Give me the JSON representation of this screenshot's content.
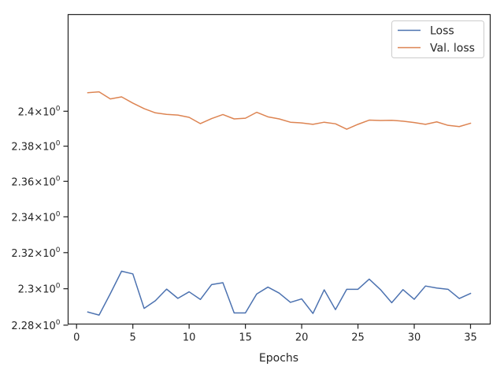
{
  "chart_data": {
    "type": "line",
    "xlabel": "Epochs",
    "ylabel": "",
    "xlim": [
      -0.75,
      36.75
    ],
    "ylim": [
      2.2806,
      2.4563
    ],
    "yscale": "log",
    "grid": false,
    "legend_position": "top-right",
    "x": [
      1,
      2,
      3,
      4,
      5,
      6,
      7,
      8,
      9,
      10,
      11,
      12,
      13,
      14,
      15,
      16,
      17,
      18,
      19,
      20,
      21,
      22,
      23,
      24,
      25,
      26,
      27,
      28,
      29,
      30,
      31,
      32,
      33,
      34,
      35
    ],
    "xticks": [
      0,
      5,
      10,
      15,
      20,
      25,
      30,
      35
    ],
    "xtick_labels": [
      "0",
      "5",
      "10",
      "15",
      "20",
      "25",
      "30",
      "35"
    ],
    "yticks": [
      2.28,
      2.3,
      2.32,
      2.34,
      2.36,
      2.38,
      2.4
    ],
    "ytick_mantissas": [
      "2.28",
      "2.3",
      "2.32",
      "2.34",
      "2.36",
      "2.38",
      "2.4"
    ],
    "ytick_exponent": "0",
    "ytick_times": "×",
    "ytick_base": "10",
    "series": [
      {
        "name": "Loss",
        "color": "#4c72b0",
        "values": [
          2.2872,
          2.2855,
          2.2973,
          2.3097,
          2.3082,
          2.2892,
          2.2934,
          2.2998,
          2.2947,
          2.2983,
          2.2941,
          2.3023,
          2.3033,
          2.2867,
          2.2867,
          2.2971,
          2.3009,
          2.2976,
          2.2925,
          2.2944,
          2.2864,
          2.2994,
          2.2885,
          2.2997,
          2.2997,
          2.3053,
          2.2995,
          2.2923,
          2.2995,
          2.2942,
          2.3015,
          2.3004,
          2.2997,
          2.2946,
          2.2974
        ]
      },
      {
        "name": "Val. loss",
        "color": "#dd8452",
        "values": [
          2.4107,
          2.4112,
          2.4071,
          2.4083,
          2.4047,
          2.4015,
          2.3991,
          2.3982,
          2.3978,
          2.3965,
          2.3929,
          2.3958,
          2.3981,
          2.3956,
          2.396,
          2.3994,
          2.3968,
          2.3956,
          2.3937,
          2.3933,
          2.3925,
          2.3937,
          2.3928,
          2.3897,
          2.3925,
          2.3949,
          2.3947,
          2.3948,
          2.3943,
          2.3935,
          2.3925,
          2.3939,
          2.3919,
          2.3912,
          2.3931
        ]
      }
    ]
  }
}
